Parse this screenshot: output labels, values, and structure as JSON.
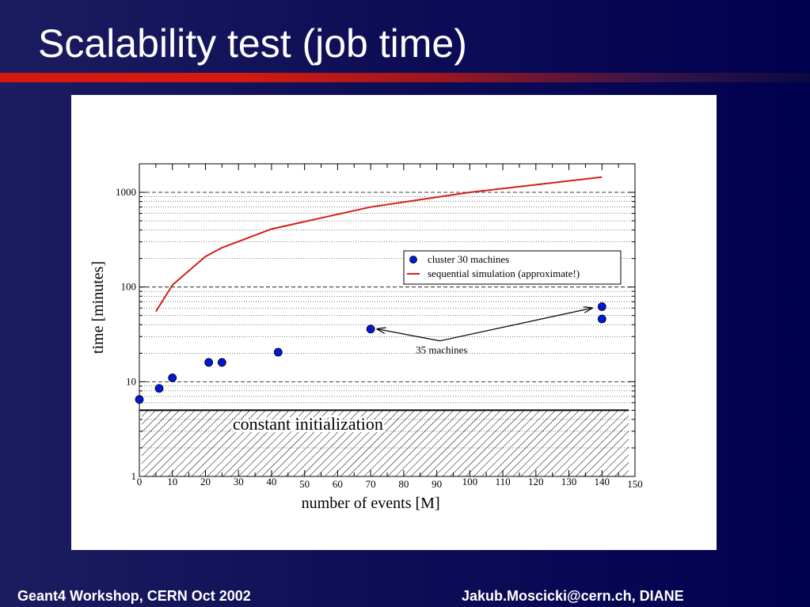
{
  "slide": {
    "title": "Scalability test (job time)",
    "footer_left": "Geant4 Workshop, CERN Oct 2002",
    "footer_right": "Jakub.Moscicki@cern.ch,  DIANE"
  },
  "colors": {
    "background": "#000050",
    "title_bar": "#d21a10",
    "cluster_points": "#0018d8",
    "sequential_line": "#d0201a"
  },
  "chart_data": {
    "type": "scatter",
    "xlabel": "number of events [M]",
    "ylabel": "time [minutes]",
    "xlim": [
      0,
      150
    ],
    "ylim": [
      1,
      2000
    ],
    "y_scale": "log",
    "grid": "horizontal dotted at minor log ticks, dashed at decades",
    "legend_placement": "center-right",
    "x_ticks": [
      "0",
      "10",
      "20",
      "30",
      "40",
      "50",
      "60",
      "70",
      "80",
      "90",
      "100",
      "110",
      "120",
      "130",
      "140",
      "150"
    ],
    "y_ticks": [
      "1",
      "10",
      "100",
      "1000"
    ],
    "series": [
      {
        "name": "cluster 30 machines",
        "kind": "scatter",
        "x": [
          0,
          6,
          10,
          21,
          25,
          42,
          70,
          140,
          140
        ],
        "y": [
          6.5,
          8.5,
          11,
          16,
          16,
          20.5,
          36,
          62,
          46
        ]
      },
      {
        "name": "sequential simulation (approximate!)",
        "kind": "line",
        "x": [
          5,
          10,
          20,
          25,
          40,
          70,
          100,
          140
        ],
        "y": [
          55,
          105,
          210,
          260,
          410,
          700,
          1000,
          1450
        ]
      }
    ],
    "annotations": {
      "constant_init": "constant initialization",
      "constant_init_level": 5,
      "machines_label": "35 machines",
      "machines_label_at": [
        91,
        27
      ],
      "machines_arrow_targets": [
        [
          72,
          36
        ],
        [
          137,
          60
        ]
      ]
    }
  }
}
